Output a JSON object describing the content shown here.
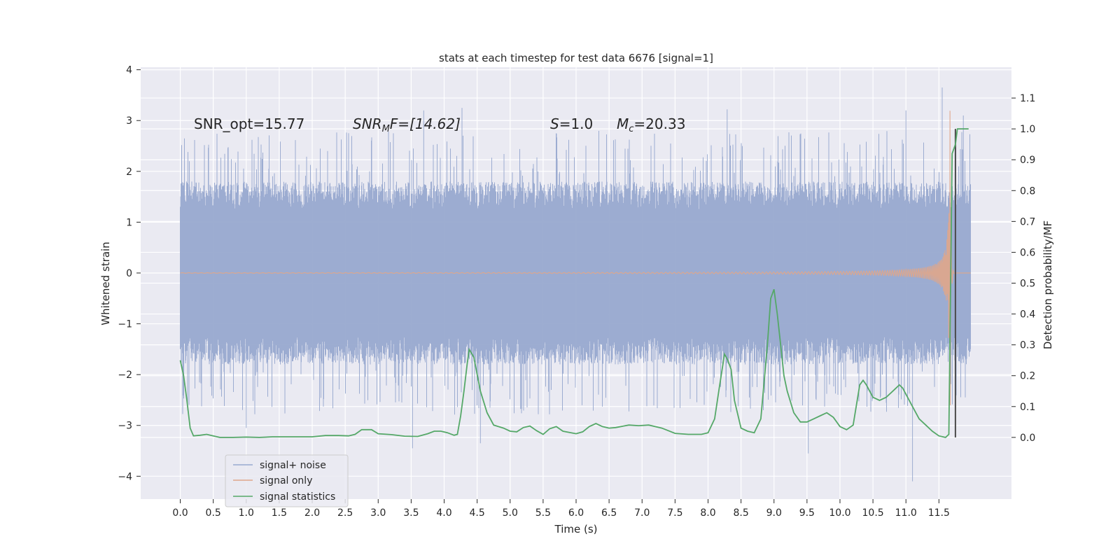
{
  "chart_data": {
    "type": "line",
    "title": "stats at each timestep for test data 6676 [signal=1]",
    "xlabel": "Time (s)",
    "ylabel": "Whitened strain",
    "y2label": "Detection probability/MF",
    "xlim": [
      -0.6,
      12.6
    ],
    "ylim": [
      -4.45,
      4.05
    ],
    "y2lim": [
      -0.2,
      1.2
    ],
    "x_ticks": [
      "0.0",
      "0.5",
      "1.0",
      "1.5",
      "2.0",
      "2.5",
      "3.0",
      "3.5",
      "4.0",
      "4.5",
      "5.0",
      "5.5",
      "6.0",
      "6.5",
      "7.0",
      "7.5",
      "8.0",
      "8.5",
      "9.0",
      "9.5",
      "10.0",
      "10.5",
      "11.0",
      "11.5"
    ],
    "y_ticks": [
      "4",
      "3",
      "2",
      "1",
      "0",
      "−1",
      "−2",
      "−3",
      "−4"
    ],
    "y2_ticks": [
      "1.1",
      "1.0",
      "0.9",
      "0.8",
      "0.7",
      "0.6",
      "0.5",
      "0.4",
      "0.3",
      "0.2",
      "0.1",
      "0.0"
    ],
    "annotations": {
      "snr_opt": "SNR_opt=15.77",
      "snr_mf_main": "SNR",
      "snr_mf_sub": "M",
      "snr_mf_rest": "F=[14.62]",
      "s_main": "S",
      "s_rest": "=1.0",
      "mc_main": "M",
      "mc_sub": "c",
      "mc_rest": "=20.33"
    },
    "legend": {
      "placement": "lower-left",
      "entries": [
        "signal+ noise",
        "signal only",
        "signal statistics"
      ]
    },
    "grid": true,
    "colors": {
      "background": "#eaeaf2",
      "grid": "#ffffff",
      "noise": "#98a9cf",
      "signal": "#e0a68a",
      "stat": "#55a868",
      "marker": "#4a4a4a"
    },
    "series": [
      {
        "name": "signal+ noise",
        "x_range": [
          0.0,
          11.98
        ],
        "envelope_upper_typical": [
          1.3,
          2.0
        ],
        "envelope_lower_typical": [
          -1.3,
          -2.0
        ],
        "peaks": [
          {
            "x": 11.55,
            "y": 3.65
          },
          {
            "x": 8.29,
            "y": 3.22
          },
          {
            "x": 4.27,
            "y": 3.25
          },
          {
            "x": 3.69,
            "y": 3.2
          },
          {
            "x": 11.0,
            "y": 3.2
          },
          {
            "x": 11.87,
            "y": 3.1
          },
          {
            "x": 11.1,
            "y": -4.1
          },
          {
            "x": 9.52,
            "y": -3.55
          },
          {
            "x": 3.52,
            "y": -3.45
          },
          {
            "x": 4.55,
            "y": -3.35
          },
          {
            "x": 1.0,
            "y": -3.05
          }
        ]
      },
      {
        "name": "signal only",
        "type": "chirp",
        "x_range": [
          0.0,
          11.75
        ],
        "merger_time": 11.67,
        "peak": 3.2,
        "trough": -3.2
      },
      {
        "name": "signal statistics",
        "axis": "right",
        "x": [
          0.0,
          0.05,
          0.1,
          0.15,
          0.2,
          0.3,
          0.4,
          0.5,
          0.6,
          0.8,
          1.0,
          1.2,
          1.4,
          1.6,
          1.8,
          2.0,
          2.2,
          2.4,
          2.55,
          2.65,
          2.75,
          2.9,
          3.0,
          3.2,
          3.4,
          3.6,
          3.75,
          3.85,
          3.95,
          4.05,
          4.15,
          4.2,
          4.25,
          4.3,
          4.35,
          4.38,
          4.45,
          4.55,
          4.65,
          4.75,
          4.9,
          5.0,
          5.1,
          5.2,
          5.3,
          5.4,
          5.5,
          5.6,
          5.7,
          5.8,
          6.0,
          6.1,
          6.2,
          6.3,
          6.4,
          6.5,
          6.6,
          6.8,
          6.95,
          7.1,
          7.3,
          7.5,
          7.7,
          7.9,
          8.0,
          8.1,
          8.17,
          8.25,
          8.3,
          8.35,
          8.4,
          8.5,
          8.6,
          8.7,
          8.8,
          8.9,
          8.95,
          9.0,
          9.05,
          9.1,
          9.15,
          9.2,
          9.3,
          9.4,
          9.5,
          9.6,
          9.7,
          9.8,
          9.9,
          10.0,
          10.1,
          10.2,
          10.3,
          10.35,
          10.4,
          10.5,
          10.6,
          10.7,
          10.8,
          10.9,
          10.95,
          11.0,
          11.1,
          11.2,
          11.3,
          11.4,
          11.5,
          11.6,
          11.65,
          11.7,
          11.75,
          11.78,
          11.8,
          11.82,
          11.84,
          11.86,
          11.9,
          11.95
        ],
        "y": [
          0.25,
          0.2,
          0.12,
          0.03,
          0.005,
          0.007,
          0.01,
          0.005,
          0.0,
          0.0,
          0.001,
          0.0,
          0.002,
          0.002,
          0.002,
          0.002,
          0.006,
          0.006,
          0.005,
          0.01,
          0.025,
          0.025,
          0.012,
          0.009,
          0.004,
          0.003,
          0.012,
          0.02,
          0.02,
          0.015,
          0.007,
          0.01,
          0.07,
          0.15,
          0.24,
          0.285,
          0.26,
          0.15,
          0.08,
          0.04,
          0.03,
          0.02,
          0.018,
          0.032,
          0.037,
          0.022,
          0.01,
          0.028,
          0.035,
          0.02,
          0.012,
          0.018,
          0.035,
          0.045,
          0.035,
          0.03,
          0.032,
          0.04,
          0.038,
          0.04,
          0.03,
          0.013,
          0.01,
          0.01,
          0.015,
          0.06,
          0.16,
          0.27,
          0.25,
          0.22,
          0.12,
          0.03,
          0.02,
          0.015,
          0.06,
          0.3,
          0.45,
          0.48,
          0.4,
          0.3,
          0.2,
          0.15,
          0.08,
          0.05,
          0.05,
          0.06,
          0.07,
          0.08,
          0.065,
          0.035,
          0.025,
          0.04,
          0.17,
          0.185,
          0.17,
          0.13,
          0.12,
          0.13,
          0.15,
          0.17,
          0.16,
          0.14,
          0.1,
          0.06,
          0.04,
          0.02,
          0.005,
          0.0,
          0.01,
          0.92,
          0.95,
          1.0,
          1.0,
          1.0,
          1.0,
          1.0,
          1.0,
          1.0
        ]
      }
    ],
    "vertical_marker_x": 11.75
  }
}
